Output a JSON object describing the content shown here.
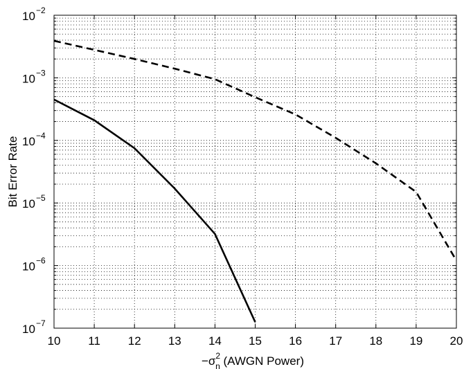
{
  "chart_data": {
    "type": "line",
    "xlabel": "−σ",
    "xlabel_sup": "2",
    "xlabel_sub": "n",
    "xlabel_rest": " (AWGN Power)",
    "ylabel": "Bit Error Rate",
    "xlim": [
      10,
      20
    ],
    "ylim": [
      1e-07,
      0.01
    ],
    "yscale": "log",
    "grid": true,
    "x_ticks": [
      10,
      11,
      12,
      13,
      14,
      15,
      16,
      17,
      18,
      19,
      20
    ],
    "y_ticks": [
      {
        "value": 1e-07,
        "base": "10",
        "exp": "−7"
      },
      {
        "value": 1e-06,
        "base": "10",
        "exp": "−6"
      },
      {
        "value": 1e-05,
        "base": "10",
        "exp": "−5"
      },
      {
        "value": 0.0001,
        "base": "10",
        "exp": "−4"
      },
      {
        "value": 0.001,
        "base": "10",
        "exp": "−3"
      },
      {
        "value": 0.01,
        "base": "10",
        "exp": "−2"
      }
    ],
    "series": [
      {
        "style": "solid",
        "color": "#000000",
        "x": [
          10,
          11,
          12,
          13,
          14,
          15
        ],
        "y": [
          0.00045,
          0.00021,
          7.5e-05,
          1.7e-05,
          3.2e-06,
          1.25e-07
        ]
      },
      {
        "style": "dashed",
        "color": "#000000",
        "x": [
          10,
          11,
          12,
          13,
          14,
          15,
          16,
          17,
          18,
          19,
          20
        ],
        "y": [
          0.0039,
          0.0028,
          0.002,
          0.0014,
          0.00095,
          0.00049,
          0.00026,
          0.00011,
          4.3e-05,
          1.5e-05,
          1.2e-06
        ]
      }
    ]
  }
}
